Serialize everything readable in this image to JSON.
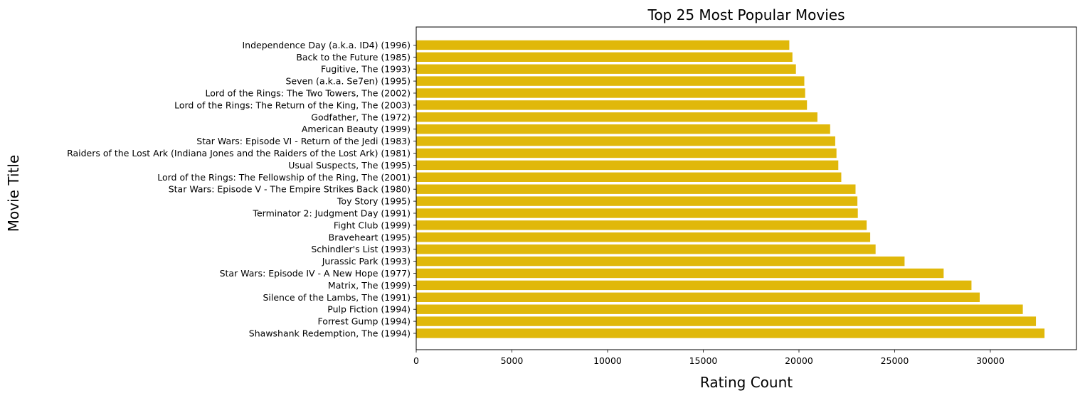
{
  "chart_data": {
    "type": "bar",
    "orientation": "horizontal",
    "title": "Top 25 Most Popular Movies",
    "xlabel": "Rating Count",
    "ylabel": "Movie Title",
    "bar_color": "#e0b80a",
    "xlim": [
      0,
      34500
    ],
    "xticks": [
      0,
      5000,
      10000,
      15000,
      20000,
      25000,
      30000
    ],
    "grid": false,
    "categories": [
      "Shawshank Redemption, The (1994)",
      "Forrest Gump (1994)",
      "Pulp Fiction (1994)",
      "Silence of the Lambs, The (1991)",
      "Matrix, The (1999)",
      "Star Wars: Episode IV - A New Hope (1977)",
      "Jurassic Park (1993)",
      "Schindler's List (1993)",
      "Braveheart (1995)",
      "Fight Club (1999)",
      "Terminator 2: Judgment Day (1991)",
      "Toy Story (1995)",
      "Star Wars: Episode V - The Empire Strikes Back (1980)",
      "Lord of the Rings: The Fellowship of the Ring, The (2001)",
      "Usual Suspects, The (1995)",
      "Raiders of the Lost Ark (Indiana Jones and the Raiders of the Lost Ark) (1981)",
      "Star Wars: Episode VI - Return of the Jedi (1983)",
      "American Beauty (1999)",
      "Godfather, The (1972)",
      "Lord of the Rings: The Return of the King, The (2003)",
      "Lord of the Rings: The Two Towers, The (2002)",
      "Seven (a.k.a. Se7en) (1995)",
      "Fugitive, The (1993)",
      "Back to the Future (1985)",
      "Independence Day (a.k.a. ID4) (1996)"
    ],
    "values": [
      32831,
      32383,
      31697,
      29444,
      29014,
      27560,
      25518,
      24004,
      23722,
      23536,
      23075,
      23053,
      22956,
      22211,
      22056,
      21960,
      21895,
      21629,
      20964,
      20418,
      20323,
      20279,
      19841,
      19658,
      19495
    ]
  }
}
